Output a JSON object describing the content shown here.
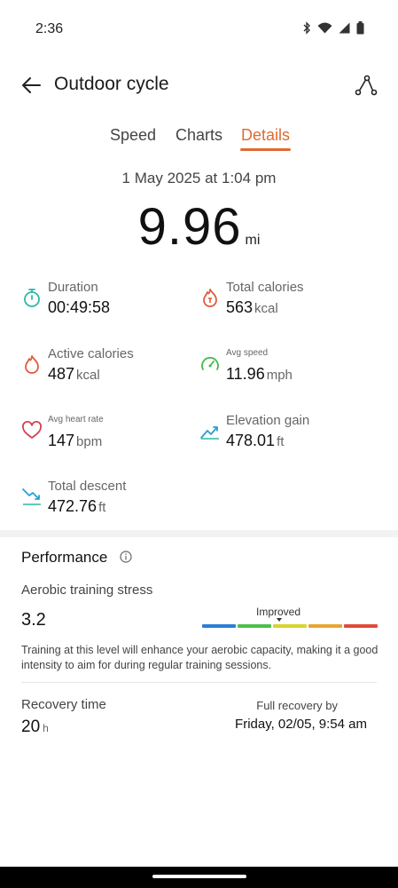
{
  "status_bar": {
    "time": "2:36",
    "icons": [
      "bluetooth-icon",
      "wifi-icon",
      "cellular-signal-icon",
      "battery-icon"
    ]
  },
  "header": {
    "title": "Outdoor cycle",
    "back_icon": "arrow-left-icon",
    "route_icon": "route-icon"
  },
  "tabs": [
    {
      "label": "Speed",
      "active": false
    },
    {
      "label": "Charts",
      "active": false
    },
    {
      "label": "Details",
      "active": true
    }
  ],
  "colors": {
    "accent": "#e16a2f",
    "duration": "#2fb8a6",
    "calories": "#e05a3a",
    "speed": "#42b94a",
    "heart": "#d4415a",
    "elevation": "#2a9fd6"
  },
  "summary": {
    "date": "1 May 2025 at 1:04 pm",
    "distance": "9.96",
    "distance_unit": "mi"
  },
  "metrics": {
    "duration": {
      "label": "Duration",
      "value": "00:49:58",
      "unit": "",
      "icon": "stopwatch-icon"
    },
    "total_calories": {
      "label": "Total calories",
      "value": "563",
      "unit": "kcal",
      "icon": "flame-icon"
    },
    "active_calories": {
      "label": "Active calories",
      "value": "487",
      "unit": "kcal",
      "icon": "flame-icon"
    },
    "avg_speed": {
      "label": "Avg speed",
      "value": "11.96",
      "unit": "mph",
      "icon": "speedometer-icon"
    },
    "avg_heart_rate": {
      "label": "Avg heart rate",
      "value": "147",
      "unit": "bpm",
      "icon": "heart-icon"
    },
    "elevation_gain": {
      "label": "Elevation gain",
      "value": "478.01",
      "unit": "ft",
      "icon": "elevation-up-icon"
    },
    "total_descent": {
      "label": "Total descent",
      "value": "472.76",
      "unit": "ft",
      "icon": "elevation-down-icon"
    }
  },
  "performance": {
    "title": "Performance",
    "info_icon": "info-icon",
    "aerobic": {
      "label": "Aerobic training stress",
      "value": "3.2",
      "status": "Improved",
      "scale_colors": [
        "#2a7fd6",
        "#4cc04a",
        "#d9d42c",
        "#e8a531",
        "#e24a3a"
      ],
      "description": "Training at this level will enhance your aerobic capacity, making it a good intensity to aim for during regular training sessions."
    },
    "recovery": {
      "label": "Recovery time",
      "value": "20",
      "unit": "h",
      "full_label": "Full recovery by",
      "full_value": "Friday, 02/05, 9:54 am"
    }
  }
}
